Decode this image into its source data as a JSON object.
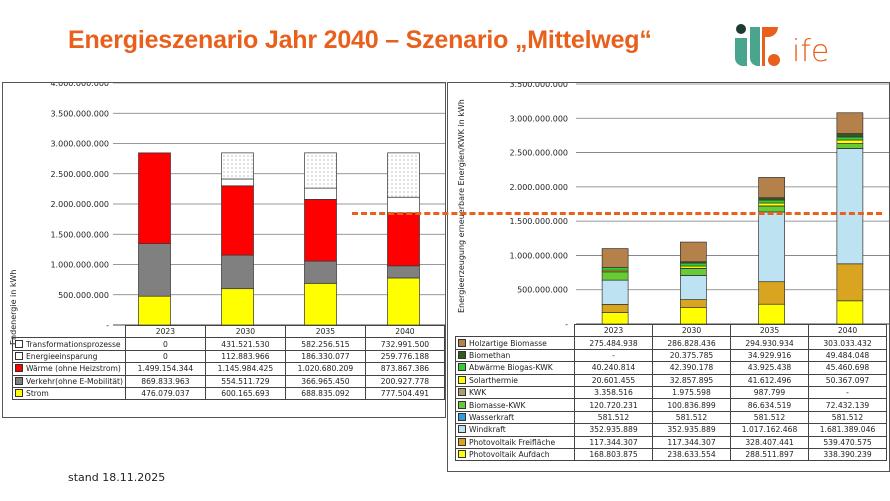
{
  "title": "Energieszenario Jahr 2040 – Szenario „Mittelweg“",
  "logo": {
    "text": "ife",
    "colors": [
      "#4aa58f",
      "#1f3b2f",
      "#e8601c"
    ]
  },
  "footer": {
    "stand": "stand 18.11.2025"
  },
  "colors": {
    "accent": "#e8601c",
    "reference_line": "#e8601c"
  },
  "chart_data": [
    {
      "type": "bar",
      "stacked": true,
      "ylabel": "Endenergie in kWh",
      "ylim": [
        0,
        4000000000
      ],
      "yticks": [
        "-",
        "500.000.000",
        "1.000.000.000",
        "1.500.000.000",
        "2.000.000.000",
        "2.500.000.000",
        "3.000.000.000",
        "3.500.000.000",
        "4.000.000.000"
      ],
      "categories": [
        "2023",
        "2030",
        "2035",
        "2040"
      ],
      "series": [
        {
          "name": "Transformationsprozesse",
          "color": "#ffffff",
          "pattern": "dotted",
          "values": [
            0,
            431521530,
            582256515,
            732991500
          ],
          "labels": [
            "0",
            "431.521.530",
            "582.256.515",
            "732.991.500"
          ]
        },
        {
          "name": "Energieeinsparung",
          "color": "#ffffff",
          "values": [
            0,
            112883966,
            186330077,
            259776188
          ],
          "labels": [
            "0",
            "112.883.966",
            "186.330.077",
            "259.776.188"
          ]
        },
        {
          "name": "Wärme (ohne Heizstrom)",
          "color": "#ff0000",
          "values": [
            1499154344,
            1145984425,
            1020680209,
            873867386
          ],
          "labels": [
            "1.499.154.344",
            "1.145.984.425",
            "1.020.680.209",
            "873.867.386"
          ]
        },
        {
          "name": "Verkehr(ohne E-Mobilität)",
          "color": "#808080",
          "values": [
            869833963,
            554511729,
            366965450,
            200927778
          ],
          "labels": [
            "869.833.963",
            "554.511.729",
            "366.965.450",
            "200.927.778"
          ]
        },
        {
          "name": "Strom",
          "color": "#ffff00",
          "values": [
            476079037,
            600165693,
            688835092,
            777504491
          ],
          "labels": [
            "476.079.037",
            "600.165.693",
            "688.835.092",
            "777.504.491"
          ]
        }
      ]
    },
    {
      "type": "bar",
      "stacked": true,
      "ylabel": "Energieerzeugung erneuerbare Energien/KWK in kWh",
      "ylim": [
        0,
        3500000000
      ],
      "yticks": [
        "-",
        "500.000.000",
        "1.000.000.000",
        "1.500.000.000",
        "2.000.000.000",
        "2.500.000.000",
        "3.000.000.000",
        "3.500.000.000"
      ],
      "categories": [
        "2023",
        "2030",
        "2035",
        "2040"
      ],
      "series": [
        {
          "name": "Holzartige Biomasse",
          "color": "#b5814b",
          "values": [
            275484938,
            286828436,
            294930934,
            303033432
          ],
          "labels": [
            "275.484.938",
            "286.828.436",
            "294.930.934",
            "303.033.432"
          ]
        },
        {
          "name": "Biomethan",
          "color": "#375623",
          "values": [
            0,
            20375785,
            34929916,
            49484048
          ],
          "labels": [
            "-",
            "20.375.785",
            "34.929.916",
            "49.484.048"
          ]
        },
        {
          "name": "Abwärme Biogas-KWK",
          "color": "#33cc33",
          "values": [
            40240814,
            42390178,
            43925438,
            45460698
          ],
          "labels": [
            "40.240.814",
            "42.390.178",
            "43.925.438",
            "45.460.698"
          ]
        },
        {
          "name": "Solarthermie",
          "color": "#ffff00",
          "values": [
            20601455,
            32857895,
            41612496,
            50367097
          ],
          "labels": [
            "20.601.455",
            "32.857.895",
            "41.612.496",
            "50.367.097"
          ]
        },
        {
          "name": "KWK",
          "color": "#a8a070",
          "values": [
            3358516,
            1975598,
            987799,
            0
          ],
          "labels": [
            "3.358.516",
            "1.975.598",
            "987.799",
            "-"
          ]
        },
        {
          "name": "Biomasse-KWK",
          "color": "#66cc33",
          "values": [
            120720231,
            100836899,
            86634519,
            72432139
          ],
          "labels": [
            "120.720.231",
            "100.836.899",
            "86.634.519",
            "72.432.139"
          ]
        },
        {
          "name": "Wasserkraft",
          "color": "#2e9be0",
          "values": [
            581512,
            581512,
            581512,
            581512
          ],
          "labels": [
            "581.512",
            "581.512",
            "581.512",
            "581.512"
          ]
        },
        {
          "name": "Windkraft",
          "color": "#bde3f2",
          "values": [
            352935889,
            352935889,
            1017162468,
            1681389046
          ],
          "labels": [
            "352.935.889",
            "352.935.889",
            "1.017.162.468",
            "1.681.389.046"
          ]
        },
        {
          "name": "Photovoltaik Freifläche",
          "color": "#d9a520",
          "values": [
            117344307,
            117344307,
            328407441,
            539470575
          ],
          "labels": [
            "117.344.307",
            "117.344.307",
            "328.407.441",
            "539.470.575"
          ]
        },
        {
          "name": "Photovoltaik Aufdach",
          "color": "#ffff00",
          "values": [
            168803875,
            238633554,
            288511897,
            338390239
          ],
          "labels": [
            "168.803.875",
            "238.633.554",
            "288.511.897",
            "338.390.239"
          ]
        }
      ]
    }
  ]
}
